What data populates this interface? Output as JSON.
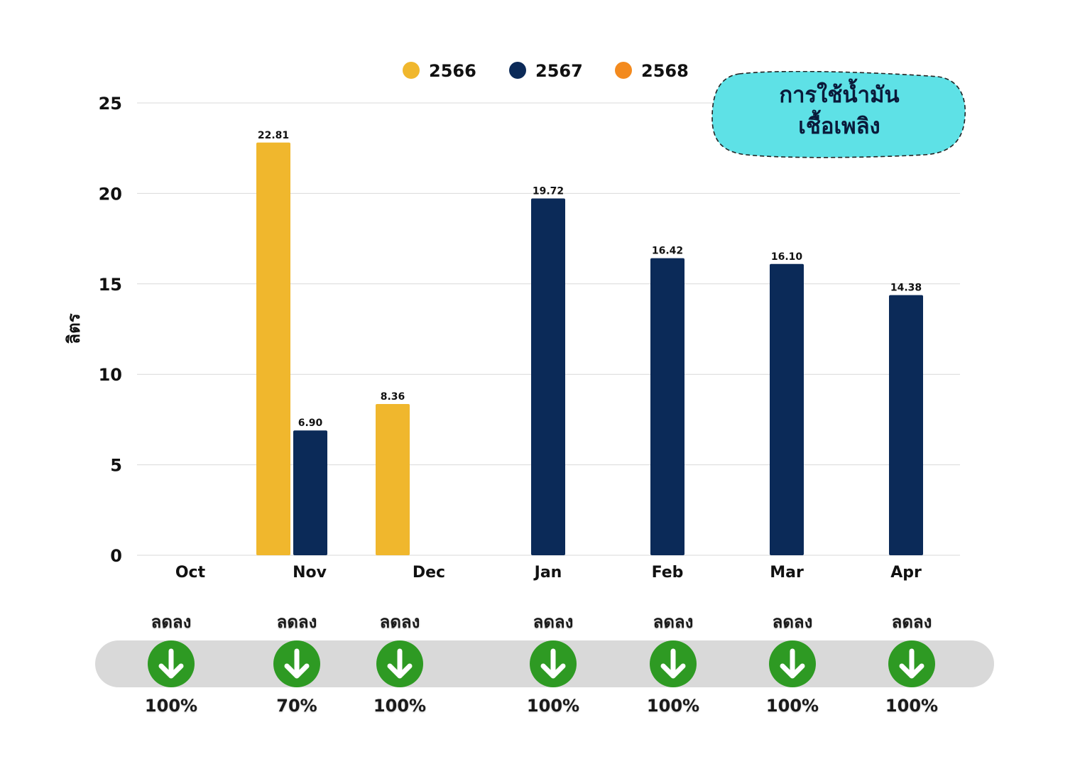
{
  "chart_data": {
    "type": "bar",
    "title": "การใช้น้ำมัน เชื้อเพลิง",
    "title_lines": [
      "การใช้น้ำมัน",
      "เชื้อเพลิง"
    ],
    "ylabel": "ลิตร",
    "xlabel": "",
    "ylim": [
      0,
      25
    ],
    "yticks": [
      0,
      5,
      10,
      15,
      20,
      25
    ],
    "categories": [
      "Oct",
      "Nov",
      "Dec",
      "Jan",
      "Feb",
      "Mar",
      "Apr"
    ],
    "grid": true,
    "legend_position": "top",
    "series": [
      {
        "name": "2566",
        "color": "#f0b72d",
        "values": [
          null,
          22.81,
          8.36,
          null,
          null,
          null,
          null
        ],
        "labels": [
          "",
          "22.81",
          "8.36",
          "",
          "",
          "",
          ""
        ]
      },
      {
        "name": "2567",
        "color": "#0b2a58",
        "values": [
          null,
          6.9,
          null,
          19.72,
          16.42,
          16.1,
          14.38
        ],
        "labels": [
          "",
          "6.90",
          "",
          "19.72",
          "16.42",
          "16.10",
          "14.38"
        ]
      },
      {
        "name": "2568",
        "color": "#f38a1e",
        "values": [
          null,
          null,
          null,
          null,
          null,
          null,
          null
        ],
        "labels": [
          "",
          "",
          "",
          "",
          "",
          "",
          ""
        ]
      }
    ]
  },
  "trend": {
    "items": [
      {
        "word": "ลดลง",
        "icon": "arrow-down-icon",
        "percent": "100%"
      },
      {
        "word": "ลดลง",
        "icon": "arrow-down-icon",
        "percent": "70%"
      },
      {
        "word": "ลดลง",
        "icon": "arrow-down-icon",
        "percent": "100%"
      },
      {
        "word": "ลดลง",
        "icon": "arrow-down-icon",
        "percent": "100%"
      },
      {
        "word": "ลดลง",
        "icon": "arrow-down-icon",
        "percent": "100%"
      },
      {
        "word": "ลดลง",
        "icon": "arrow-down-icon",
        "percent": "100%"
      },
      {
        "word": "ลดลง",
        "icon": "arrow-down-icon",
        "percent": "100%"
      }
    ],
    "icon_color": "#2e9a23",
    "band_color": "#d9d9d9"
  },
  "title_box_color": "#5ee1e6"
}
